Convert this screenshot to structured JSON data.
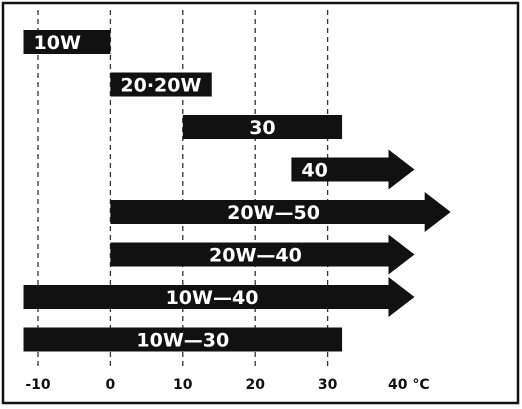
{
  "chart_data": {
    "type": "range-bar",
    "xlabel": "°C",
    "xlim": [
      -12,
      42
    ],
    "x_ticks": [
      -10,
      0,
      10,
      20,
      30,
      40
    ],
    "x_tick_labels": [
      "-10",
      "0",
      "10",
      "20",
      "30",
      "40 °C"
    ],
    "grid": "vertical-dashed",
    "bars": [
      {
        "label": "10W",
        "start": -12,
        "end": 0,
        "arrow": false
      },
      {
        "label": "20·20W",
        "start": 0,
        "end": 14,
        "arrow": false
      },
      {
        "label": "30",
        "start": 10,
        "end": 32,
        "arrow": false
      },
      {
        "label": "40",
        "start": 25,
        "end": 42,
        "arrow": true
      },
      {
        "label": "20W—50",
        "start": 0,
        "end": 47,
        "arrow": true
      },
      {
        "label": "20W—40",
        "start": 0,
        "end": 42,
        "arrow": true
      },
      {
        "label": "10W—40",
        "start": -12,
        "end": 42,
        "arrow": true
      },
      {
        "label": "10W—30",
        "start": -12,
        "end": 32,
        "arrow": false
      }
    ],
    "colors": {
      "bar": "#111111",
      "text": "#ffffff",
      "frame": "#111111"
    }
  }
}
